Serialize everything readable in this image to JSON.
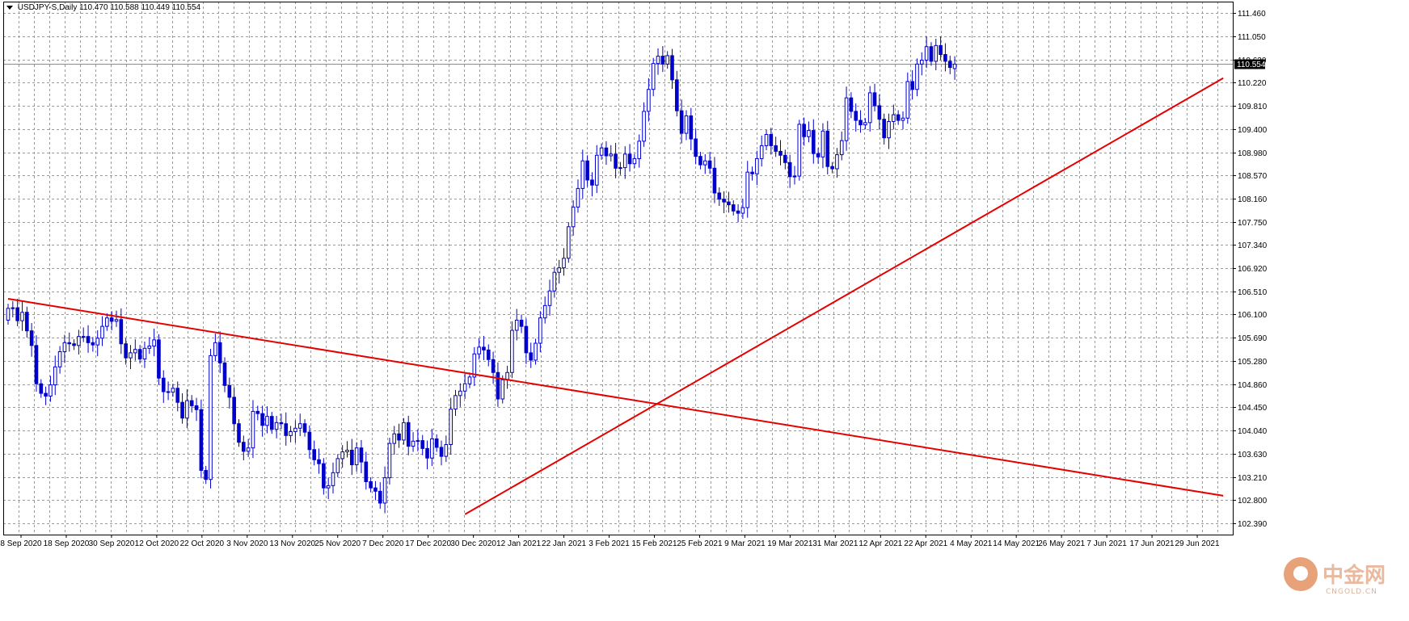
{
  "header": {
    "symbol": "USDJPY-S,Daily",
    "ohlc": "110.470 110.588 110.449 110.554"
  },
  "current_price_label": "110.554",
  "watermark": {
    "text": "中金网",
    "sub": "CNGOLD.CN"
  },
  "colors": {
    "candle": "#0000cc",
    "grid": "#9a9a9a",
    "trendline": "#e60000",
    "price_line": "#7b8ea8",
    "axis": "#000000"
  },
  "chart_data": {
    "type": "candlestick",
    "title": "",
    "ylim": [
      102.19,
      111.66
    ],
    "y_ticks": [
      "111.460",
      "111.050",
      "110.630",
      "110.220",
      "109.810",
      "109.400",
      "108.980",
      "108.570",
      "108.160",
      "107.750",
      "107.340",
      "106.920",
      "106.510",
      "106.100",
      "105.690",
      "105.280",
      "104.860",
      "104.450",
      "104.040",
      "103.630",
      "103.210",
      "102.800",
      "102.390"
    ],
    "x_ticks": [
      "8 Sep 2020",
      "18 Sep 2020",
      "30 Sep 2020",
      "12 Oct 2020",
      "22 Oct 2020",
      "3 Nov 2020",
      "13 Nov 2020",
      "25 Nov 2020",
      "7 Dec 2020",
      "17 Dec 2020",
      "30 Dec 2020",
      "12 Jan 2021",
      "22 Jan 2021",
      "3 Feb 2021",
      "15 Feb 2021",
      "25 Feb 2021",
      "9 Mar 2021",
      "19 Mar 2021",
      "31 Mar 2021",
      "12 Apr 2021",
      "22 Apr 2021",
      "4 May 2021",
      "14 May 2021",
      "26 May 2021",
      "7 Jun 2021",
      "17 Jun 2021",
      "29 Jun 2021"
    ],
    "current_price": 110.554,
    "x_range": [
      0,
      259
    ],
    "close": [
      106.21,
      106.22,
      105.99,
      106.14,
      105.81,
      105.55,
      104.87,
      104.7,
      104.65,
      104.85,
      105.17,
      105.44,
      105.6,
      105.58,
      105.55,
      105.71,
      105.71,
      105.6,
      105.56,
      105.68,
      105.89,
      106.04,
      105.98,
      106.01,
      105.58,
      105.33,
      105.42,
      105.48,
      105.31,
      105.5,
      105.54,
      105.65,
      104.97,
      104.73,
      104.72,
      104.79,
      104.54,
      104.26,
      104.57,
      104.48,
      104.41,
      103.33,
      103.17,
      105.37,
      105.6,
      105.24,
      104.84,
      104.63,
      104.16,
      103.83,
      103.67,
      103.73,
      104.38,
      104.34,
      104.13,
      104.29,
      104.06,
      104.18,
      104.16,
      103.95,
      104.02,
      104.08,
      104.16,
      104.01,
      103.7,
      103.52,
      103.45,
      103.02,
      103.06,
      103.29,
      103.54,
      103.66,
      103.69,
      103.43,
      103.73,
      103.48,
      103.13,
      103.02,
      102.96,
      102.75,
      103.2,
      103.81,
      103.98,
      103.87,
      104.18,
      103.76,
      103.85,
      103.86,
      103.72,
      103.55,
      103.89,
      103.74,
      103.58,
      103.79,
      104.42,
      104.66,
      104.74,
      104.87,
      104.99,
      105.4,
      105.52,
      105.47,
      105.3,
      105.07,
      104.6,
      104.94,
      105.07,
      105.82,
      106.0,
      105.89,
      105.42,
      105.29,
      105.59,
      106.04,
      106.26,
      106.52,
      106.85,
      106.93,
      107.1,
      107.66,
      108.01,
      108.34,
      108.83,
      108.49,
      108.4,
      108.93,
      109.06,
      108.92,
      108.95,
      108.7,
      108.71,
      108.95,
      108.78,
      108.87,
      109.18,
      109.71,
      110.1,
      110.56,
      110.69,
      110.55,
      110.7,
      110.27,
      109.72,
      109.32,
      109.63,
      109.22,
      108.91,
      108.76,
      108.83,
      108.7,
      108.26,
      108.15,
      108.1,
      108.05,
      107.94,
      107.9,
      108.0,
      108.63,
      108.6,
      108.87,
      109.1,
      109.3,
      109.1,
      109.0,
      108.93,
      108.8,
      108.55,
      108.56,
      109.48,
      109.26,
      109.37,
      108.96,
      108.9,
      109.36,
      108.73,
      108.69,
      108.94,
      109.19,
      109.95,
      109.71,
      109.55,
      109.47,
      109.51,
      110.04,
      109.81,
      109.57,
      109.24,
      109.53,
      109.65,
      109.55,
      109.59,
      110.24,
      110.1,
      110.55,
      110.62,
      110.86,
      110.6,
      110.88,
      110.72,
      110.6,
      110.49,
      110.55
    ],
    "open": [
      106.0,
      106.21,
      106.22,
      105.99,
      106.14,
      105.81,
      105.55,
      104.87,
      104.7,
      104.65,
      104.85,
      105.17,
      105.44,
      105.6,
      105.58,
      105.55,
      105.71,
      105.71,
      105.6,
      105.56,
      105.68,
      105.89,
      106.04,
      105.98,
      106.01,
      105.58,
      105.33,
      105.42,
      105.48,
      105.31,
      105.5,
      105.54,
      105.65,
      104.97,
      104.73,
      104.72,
      104.79,
      104.54,
      104.26,
      104.57,
      104.48,
      104.41,
      103.33,
      103.17,
      105.37,
      105.6,
      105.24,
      104.84,
      104.63,
      104.16,
      103.83,
      103.67,
      103.73,
      104.38,
      104.34,
      104.13,
      104.29,
      104.06,
      104.18,
      104.16,
      103.95,
      104.02,
      104.08,
      104.16,
      104.01,
      103.7,
      103.52,
      103.45,
      103.02,
      103.06,
      103.29,
      103.54,
      103.66,
      103.69,
      103.43,
      103.73,
      103.48,
      103.13,
      103.02,
      102.96,
      102.75,
      103.2,
      103.81,
      103.98,
      103.87,
      104.18,
      103.76,
      103.85,
      103.86,
      103.72,
      103.55,
      103.89,
      103.74,
      103.58,
      103.79,
      104.42,
      104.66,
      104.74,
      104.87,
      104.99,
      105.4,
      105.52,
      105.47,
      105.3,
      105.07,
      104.6,
      104.94,
      105.07,
      105.82,
      106.0,
      105.89,
      105.42,
      105.29,
      105.59,
      106.04,
      106.26,
      106.52,
      106.85,
      106.93,
      107.1,
      107.66,
      108.01,
      108.34,
      108.83,
      108.49,
      108.4,
      108.93,
      109.06,
      108.92,
      108.95,
      108.7,
      108.71,
      108.95,
      108.78,
      108.87,
      109.18,
      109.71,
      110.1,
      110.56,
      110.69,
      110.55,
      110.7,
      110.27,
      109.72,
      109.32,
      109.63,
      109.22,
      108.91,
      108.76,
      108.83,
      108.7,
      108.26,
      108.15,
      108.1,
      108.05,
      107.94,
      107.9,
      108.0,
      108.63,
      108.6,
      108.87,
      109.1,
      109.3,
      109.1,
      109.0,
      108.93,
      108.8,
      108.55,
      108.56,
      109.48,
      109.26,
      109.37,
      108.96,
      108.9,
      109.36,
      108.73,
      108.69,
      108.94,
      109.19,
      109.95,
      109.71,
      109.55,
      109.47,
      109.51,
      110.04,
      109.81,
      109.57,
      109.24,
      109.53,
      109.65,
      109.55,
      109.59,
      110.24,
      110.1,
      110.55,
      110.62,
      110.86,
      110.6,
      110.88,
      110.72,
      110.6,
      110.47
    ],
    "trendlines": [
      {
        "from": {
          "x": 0,
          "y": 106.38
        },
        "to": {
          "x": 258,
          "y": 102.88
        }
      },
      {
        "from": {
          "x": 97,
          "y": 102.55
        },
        "to": {
          "x": 258,
          "y": 110.3
        }
      }
    ]
  }
}
